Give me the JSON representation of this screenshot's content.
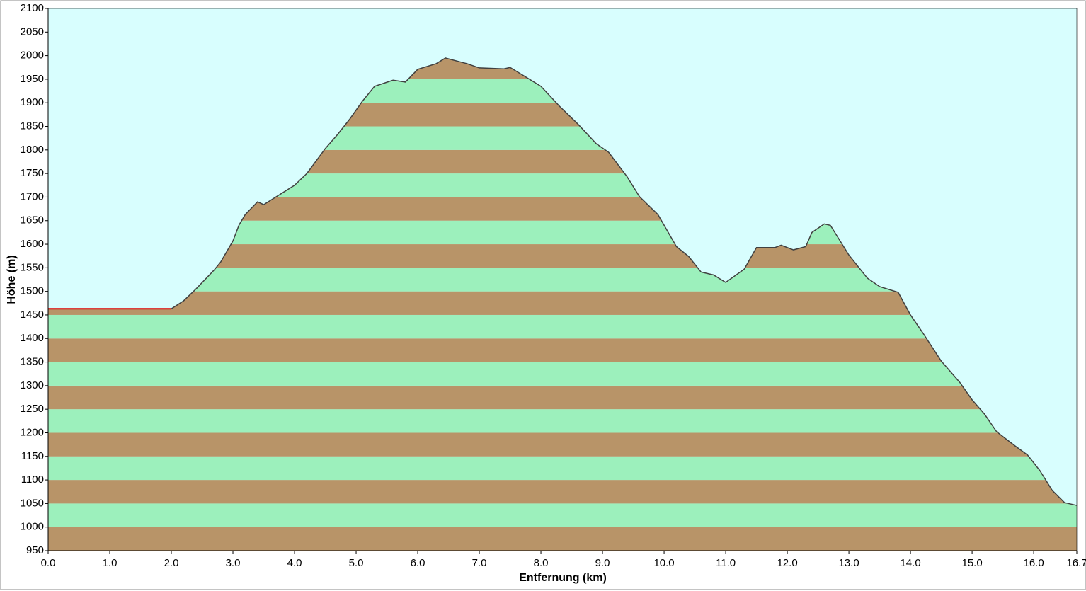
{
  "chart_data": {
    "type": "area",
    "x_label": "Entfernung  (km)",
    "y_label": "Höhe (m)",
    "xlim": [
      0,
      16.7
    ],
    "ylim": [
      950,
      2100
    ],
    "xticks": [
      {
        "value": 0,
        "label": "0.0"
      },
      {
        "value": 1,
        "label": "1.0"
      },
      {
        "value": 2,
        "label": "2.0"
      },
      {
        "value": 3,
        "label": "3.0"
      },
      {
        "value": 4,
        "label": "4.0"
      },
      {
        "value": 5,
        "label": "5.0"
      },
      {
        "value": 6,
        "label": "6.0"
      },
      {
        "value": 7,
        "label": "7.0"
      },
      {
        "value": 8,
        "label": "8.0"
      },
      {
        "value": 9,
        "label": "9.0"
      },
      {
        "value": 10,
        "label": "10.0"
      },
      {
        "value": 11,
        "label": "11.0"
      },
      {
        "value": 12,
        "label": "12.0"
      },
      {
        "value": 13,
        "label": "13.0"
      },
      {
        "value": 14,
        "label": "14.0"
      },
      {
        "value": 15,
        "label": "15.0"
      },
      {
        "value": 16,
        "label": "16.0"
      },
      16.7
    ],
    "yticks": [
      950,
      1000,
      1050,
      1100,
      1150,
      1200,
      1250,
      1300,
      1350,
      1400,
      1450,
      1500,
      1550,
      1600,
      1650,
      1700,
      1750,
      1800,
      1850,
      1900,
      1950,
      2000,
      2050,
      2100
    ],
    "background": "#d8fefe",
    "band_colors": [
      "#b89468",
      "#9cf0bc"
    ],
    "series": [
      {
        "color": "#404040",
        "x": [
          0,
          2.0,
          2.2,
          2.4,
          2.7,
          2.8,
          3.0,
          3.1,
          3.2,
          3.4,
          3.5,
          4.0,
          4.2,
          4.5,
          4.7,
          4.9,
          5.1,
          5.3,
          5.6,
          5.8,
          6.0,
          6.3,
          6.45,
          6.8,
          7.0,
          7.4,
          7.5,
          7.7,
          8.0,
          8.3,
          8.6,
          8.9,
          9.1,
          9.4,
          9.6,
          9.9,
          10.2,
          10.4,
          10.6,
          10.8,
          11.0,
          11.3,
          11.5,
          11.8,
          11.9,
          12.1,
          12.3,
          12.4,
          12.6,
          12.7,
          13.0,
          13.3,
          13.5,
          13.8,
          14.0,
          14.2,
          14.5,
          14.8,
          15.0,
          15.2,
          15.4,
          15.7,
          15.9,
          16.1,
          16.3,
          16.5,
          16.7
        ],
        "values": [
          1463,
          1463,
          1480,
          1505,
          1546,
          1562,
          1607,
          1641,
          1663,
          1690,
          1684,
          1725,
          1750,
          1803,
          1833,
          1866,
          1903,
          1935,
          1948,
          1944,
          1971,
          1983,
          1995,
          1983,
          1974,
          1972,
          1975,
          1959,
          1935,
          1893,
          1855,
          1813,
          1795,
          1743,
          1701,
          1663,
          1595,
          1574,
          1541,
          1535,
          1519,
          1547,
          1593,
          1593,
          1598,
          1588,
          1595,
          1625,
          1643,
          1640,
          1577,
          1528,
          1510,
          1498,
          1450,
          1412,
          1352,
          1307,
          1270,
          1240,
          1202,
          1172,
          1153,
          1120,
          1078,
          1052,
          1046
        ]
      },
      {
        "color": "#e00000",
        "x": [
          0,
          2.0
        ],
        "values": [
          1463,
          1463
        ]
      }
    ]
  }
}
